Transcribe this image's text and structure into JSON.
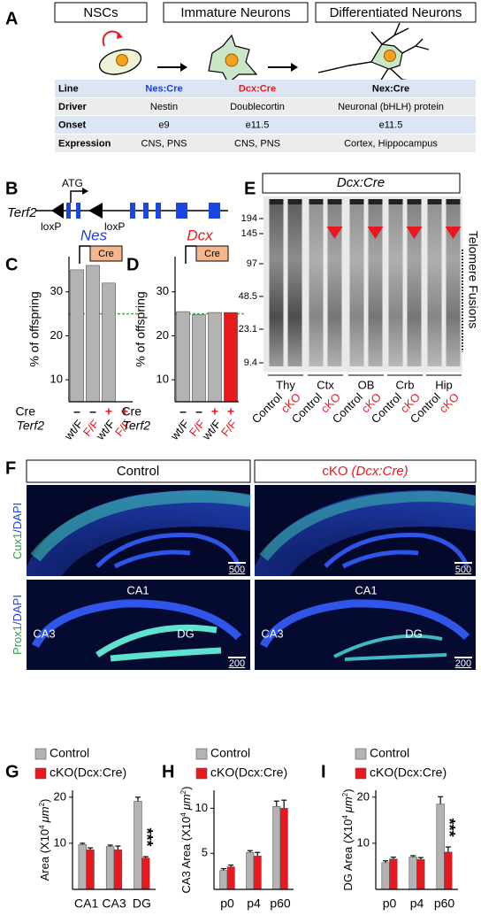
{
  "panel_labels": [
    "A",
    "B",
    "C",
    "D",
    "E",
    "F",
    "G",
    "H",
    "I"
  ],
  "panel_a": {
    "stages": [
      "NSCs",
      "Immature Neurons",
      "Differentiated Neurons"
    ],
    "table": {
      "rows": [
        [
          "Line",
          "Nes:Cre",
          "Dcx:Cre",
          "Nex:Cre"
        ],
        [
          "Driver",
          "Nestin",
          "Doublecortin",
          "Neuronal (bHLH) protein"
        ],
        [
          "Onset",
          "e9",
          "e11.5",
          "e11.5"
        ],
        [
          "Expression",
          "CNS, PNS",
          "CNS, PNS",
          "Cortex, Hippocampus"
        ]
      ]
    }
  },
  "panel_b": {
    "gene": "Terf2",
    "start": "ATG",
    "sites": [
      "loxP",
      "loxP"
    ]
  },
  "panel_e": {
    "title": "Dcx:Cre",
    "markers": [
      "194",
      "145",
      "97",
      "48.5",
      "23.1",
      "9.4"
    ],
    "tissues": [
      "Thy",
      "Ctx",
      "OB",
      "Crb",
      "Hip"
    ],
    "lanes": [
      "Control",
      "cKO",
      "Control",
      "cKO",
      "Control",
      "cKO",
      "Control",
      "cKO",
      "Control",
      "cKO"
    ],
    "side_label": "Telomere Fusions"
  },
  "panel_f": {
    "column_titles": [
      "Control",
      "cKO"
    ],
    "cko_driver": "(Dcx:Cre)",
    "row_labels": [
      {
        "marker": "Cux1",
        "stain": "/DAPI"
      },
      {
        "marker": "Prox1",
        "stain": "/DAPI"
      }
    ],
    "regions": [
      "CA1",
      "CA3",
      "DG"
    ],
    "scale_bars": [
      "500",
      "200"
    ]
  },
  "chart_data": [
    {
      "type": "bar",
      "title": "Nes",
      "title_color": "#1f3fd8",
      "driver_label": "Cre",
      "y_label": "% of offspring",
      "categories": [
        "wt/F",
        "F/F",
        "wt/F",
        "F/F"
      ],
      "category_colors": [
        "#000000",
        "#e8191e",
        "#000000",
        "#e8191e"
      ],
      "category_title": "Terf2",
      "cre": {
        "label": "Cre",
        "values": [
          "–",
          "–",
          "+",
          "+"
        ],
        "colors": [
          "#000000",
          "#000000",
          "#e8191e",
          "#e8191e"
        ]
      },
      "values": [
        35,
        36,
        32,
        null
      ],
      "colors": [
        "#b3b3b3",
        "#b3b3b3",
        "#b3b3b3",
        "#b3b3b3"
      ],
      "ylim": [
        5,
        38
      ],
      "yticks": [
        10,
        20,
        30
      ],
      "reference_line": {
        "value": 25,
        "color": "#3bb143"
      }
    },
    {
      "type": "bar",
      "title": "Dcx",
      "title_color": "#e8191e",
      "driver_label": "Cre",
      "y_label": "% of offspring",
      "categories": [
        "wt/F",
        "F/F",
        "wt/F",
        "F/F"
      ],
      "category_colors": [
        "#000000",
        "#e8191e",
        "#000000",
        "#e8191e"
      ],
      "category_title": "Terf2",
      "cre": {
        "label": "Cre",
        "values": [
          "–",
          "–",
          "+",
          "+"
        ],
        "colors": [
          "#000000",
          "#000000",
          "#e8191e",
          "#e8191e"
        ]
      },
      "values": [
        25.5,
        24.8,
        25.3,
        25.3
      ],
      "colors": [
        "#b3b3b3",
        "#b3b3b3",
        "#b3b3b3",
        "#e8191e"
      ],
      "ylim": [
        5,
        38
      ],
      "yticks": [
        10,
        20,
        30
      ],
      "reference_line": {
        "value": 25,
        "color": "#3bb143"
      }
    },
    {
      "type": "bar",
      "y_label": {
        "text": "Area (X10",
        "exponent": "4",
        "unit": "μm",
        "unit_exponent": "2",
        "close": ")"
      },
      "categories": [
        "CA1",
        "CA3",
        "DG"
      ],
      "series": [
        {
          "name": "Control",
          "color": "#b3b3b3",
          "values": [
            9.7,
            9.3,
            19.1
          ],
          "errors": [
            0.3,
            0.3,
            0.9
          ]
        },
        {
          "name": "cKO(Dcx:Cre)",
          "color": "#e8191e",
          "values": [
            8.6,
            8.6,
            6.8
          ],
          "errors": [
            0.4,
            0.8,
            0.3
          ],
          "significance": [
            null,
            null,
            "***"
          ]
        }
      ],
      "ylim": [
        0,
        21.5
      ],
      "yticks": [
        10,
        20
      ],
      "legend": "top-left"
    },
    {
      "type": "bar",
      "y_label": {
        "text": "CA3 Area (X10",
        "exponent": "4",
        "unit": "μm",
        "unit_exponent": "2",
        "close": ")"
      },
      "categories": [
        "p0",
        "p4",
        "p60"
      ],
      "series": [
        {
          "name": "Control",
          "color": "#b3b3b3",
          "values": [
            3.1,
            5.1,
            10.2
          ],
          "errors": [
            0.2,
            0.2,
            0.6
          ]
        },
        {
          "name": "cKO(Dcx:Cre)",
          "color": "#e8191e",
          "values": [
            3.5,
            4.7,
            10.0
          ],
          "errors": [
            0.2,
            0.4,
            0.9
          ]
        }
      ],
      "ylim": [
        1,
        12
      ],
      "yticks": [
        5,
        10
      ],
      "legend": "top-left"
    },
    {
      "type": "bar",
      "y_label": {
        "text": "DG Area (X10",
        "exponent": "4",
        "unit": "μm",
        "unit_exponent": "2",
        "close": ")"
      },
      "categories": [
        "p0",
        "p4",
        "p60"
      ],
      "series": [
        {
          "name": "Control",
          "color": "#b3b3b3",
          "values": [
            5.8,
            7.0,
            18.5
          ],
          "errors": [
            0.4,
            0.3,
            1.6
          ]
        },
        {
          "name": "cKO(Dcx:Cre)",
          "color": "#e8191e",
          "values": [
            6.6,
            6.5,
            8.1
          ],
          "errors": [
            0.4,
            0.4,
            1.1
          ],
          "significance": [
            null,
            null,
            "***"
          ]
        }
      ],
      "ylim": [
        0,
        21.5
      ],
      "yticks": [
        10,
        20
      ],
      "legend": "top-left"
    }
  ]
}
